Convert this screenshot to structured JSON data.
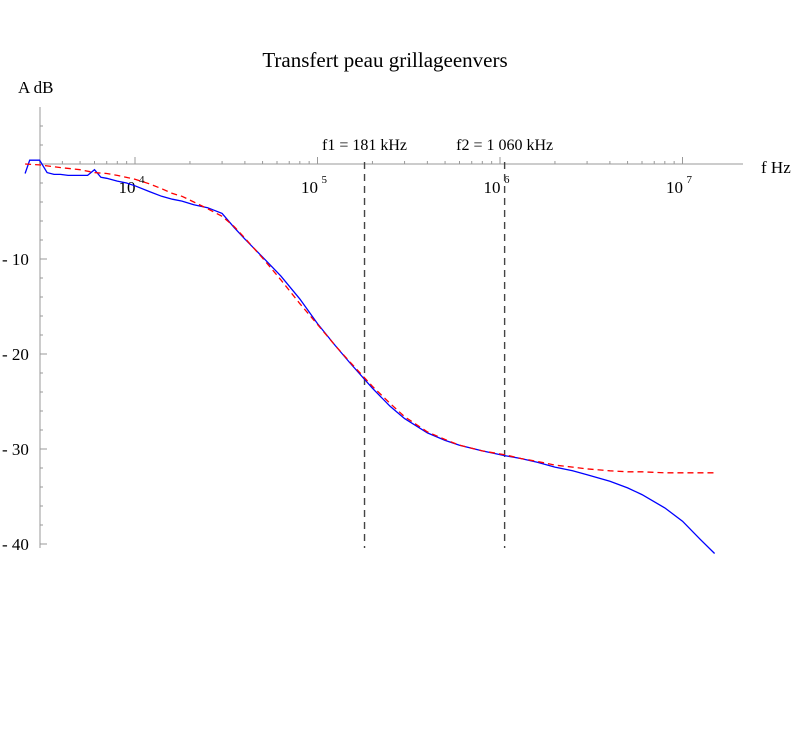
{
  "chart_data": {
    "type": "line",
    "title": "Transfert peau grillageenvers",
    "xlabel": "f Hz",
    "ylabel": "A dB",
    "x_scale": "log",
    "xlim": [
      2500,
      16000000
    ],
    "ylim": [
      -41,
      6
    ],
    "x_ticks": [
      {
        "value": 10000,
        "base": "10",
        "exp": "4"
      },
      {
        "value": 100000,
        "base": "10",
        "exp": "5"
      },
      {
        "value": 1000000,
        "base": "10",
        "exp": "6"
      },
      {
        "value": 10000000,
        "base": "10",
        "exp": "7"
      }
    ],
    "y_ticks": [
      {
        "value": -10,
        "label": "- 10"
      },
      {
        "value": -20,
        "label": "- 20"
      },
      {
        "value": -30,
        "label": "- 30"
      },
      {
        "value": -40,
        "label": "- 40"
      }
    ],
    "grid": false,
    "series": [
      {
        "color": "#0000ff",
        "style": "solid",
        "x": [
          2500,
          2650,
          2800,
          3000,
          3300,
          3600,
          3900,
          4300,
          4800,
          5500,
          6000,
          6500,
          7000,
          8000,
          9000,
          10000,
          12000,
          14000,
          16000,
          18100,
          21000,
          25000,
          30000,
          35000,
          40000,
          50000,
          63000,
          80000,
          100000,
          125000,
          150000,
          200000,
          250000,
          300000,
          400000,
          500000,
          600000,
          800000,
          1060000,
          1300000,
          1600000,
          2000000,
          2500000,
          3000000,
          4000000,
          5000000,
          6000000,
          8000000,
          10000000,
          12500000,
          15000000
        ],
        "y": [
          -1,
          0.4,
          0.4,
          0.4,
          -0.9,
          -1.1,
          -1.1,
          -1.2,
          -1.2,
          -1.2,
          -0.6,
          -1.4,
          -1.5,
          -1.8,
          -2.0,
          -2.3,
          -2.9,
          -3.4,
          -3.7,
          -3.9,
          -4.3,
          -4.6,
          -5.2,
          -6.7,
          -7.9,
          -9.8,
          -11.8,
          -14.2,
          -16.8,
          -19.1,
          -20.9,
          -23.6,
          -25.5,
          -26.8,
          -28.3,
          -29.1,
          -29.6,
          -30.2,
          -30.7,
          -31.0,
          -31.4,
          -31.9,
          -32.3,
          -32.7,
          -33.4,
          -34.1,
          -34.8,
          -36.2,
          -37.6,
          -39.5,
          -41
        ]
      },
      {
        "color": "#ff0000",
        "style": "dashed",
        "x": [
          2500,
          3000,
          4000,
          5000,
          6000,
          7000,
          8000,
          10000,
          12000,
          14000,
          16000,
          18100,
          21000,
          25000,
          30000,
          35000,
          40000,
          50000,
          63000,
          80000,
          100000,
          125000,
          150000,
          200000,
          250000,
          300000,
          400000,
          500000,
          600000,
          800000,
          1060000,
          1300000,
          1600000,
          2000000,
          2500000,
          3000000,
          4000000,
          5000000,
          6000000,
          8000000,
          10000000,
          12500000,
          15000000
        ],
        "y": [
          0,
          -0.1,
          -0.4,
          -0.6,
          -0.9,
          -1.0,
          -1.2,
          -1.6,
          -2.1,
          -2.6,
          -3.1,
          -3.4,
          -4.0,
          -4.7,
          -5.5,
          -6.6,
          -7.8,
          -9.9,
          -12.2,
          -14.7,
          -16.9,
          -19.1,
          -20.8,
          -23.4,
          -25.2,
          -26.6,
          -28.2,
          -29.0,
          -29.6,
          -30.2,
          -30.6,
          -31.0,
          -31.3,
          -31.7,
          -31.9,
          -32.1,
          -32.3,
          -32.4,
          -32.4,
          -32.5,
          -32.5,
          -32.5,
          -32.5
        ]
      }
    ],
    "annotations": [
      {
        "label": "f1 = 181 kHz",
        "x": 181000
      },
      {
        "label": "f2 = 1 060 kHz",
        "x": 1060000
      }
    ]
  }
}
